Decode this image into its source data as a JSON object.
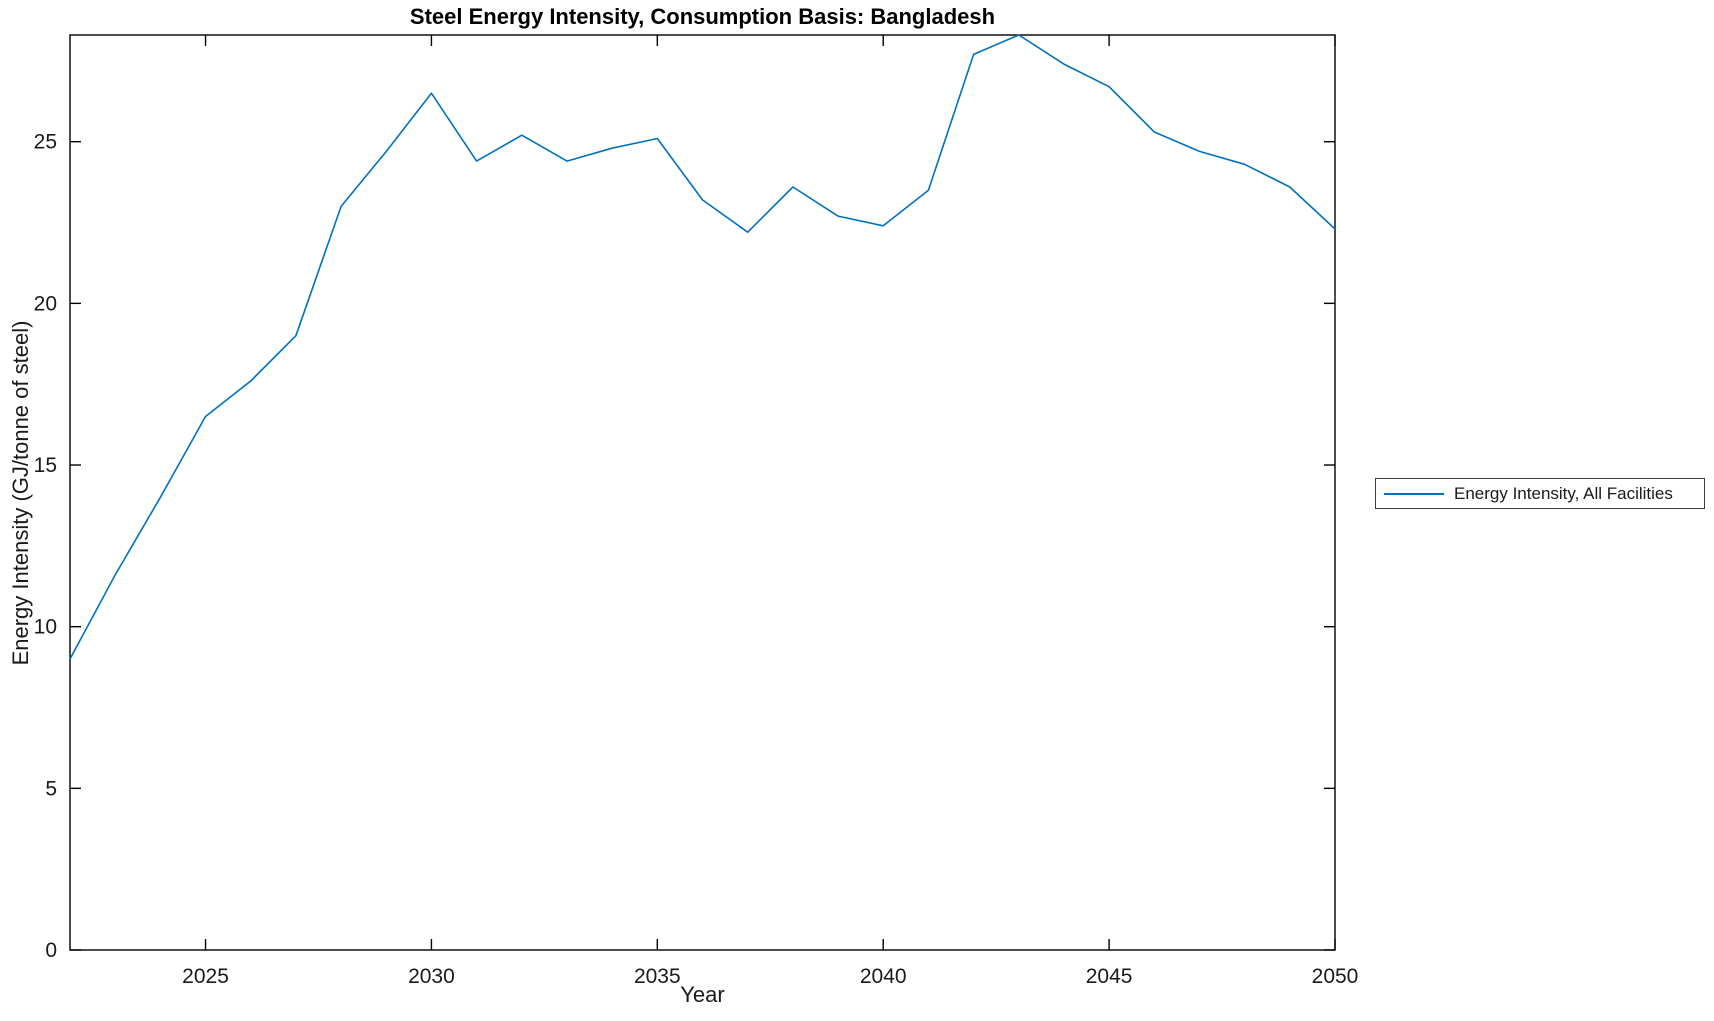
{
  "figure": {
    "background": "#ffffff",
    "axis_color": "#000000",
    "text_color": "#1a1a1a"
  },
  "chart_data": {
    "type": "line",
    "title": "Steel Energy Intensity, Consumption Basis: Bangladesh",
    "xlabel": "Year",
    "ylabel": "Energy Intensity (GJ/tonne of steel)",
    "xlim": [
      2022,
      2050
    ],
    "ylim": [
      0,
      28.3
    ],
    "x_ticks": [
      2025,
      2030,
      2035,
      2040,
      2045,
      2050
    ],
    "y_ticks": [
      0,
      5,
      10,
      15,
      20,
      25
    ],
    "grid": false,
    "box": true,
    "tick_direction": "in",
    "legend": {
      "position": "right-outside",
      "entries": [
        "Energy Intensity, All Facilities"
      ]
    },
    "series": [
      {
        "name": "Energy Intensity, All Facilities",
        "color": "#0072BD",
        "x": [
          2022,
          2023,
          2024,
          2025,
          2026,
          2027,
          2028,
          2029,
          2030,
          2031,
          2032,
          2033,
          2034,
          2035,
          2036,
          2037,
          2038,
          2039,
          2040,
          2041,
          2042,
          2043,
          2044,
          2045,
          2046,
          2047,
          2048,
          2049,
          2050
        ],
        "values": [
          9.0,
          11.6,
          14.0,
          16.5,
          17.6,
          19.0,
          23.0,
          24.7,
          26.5,
          24.4,
          25.2,
          24.4,
          24.8,
          25.1,
          23.2,
          22.2,
          23.6,
          22.7,
          22.4,
          23.5,
          27.7,
          28.3,
          27.4,
          26.7,
          25.3,
          24.7,
          24.3,
          23.6,
          22.3
        ]
      }
    ]
  }
}
